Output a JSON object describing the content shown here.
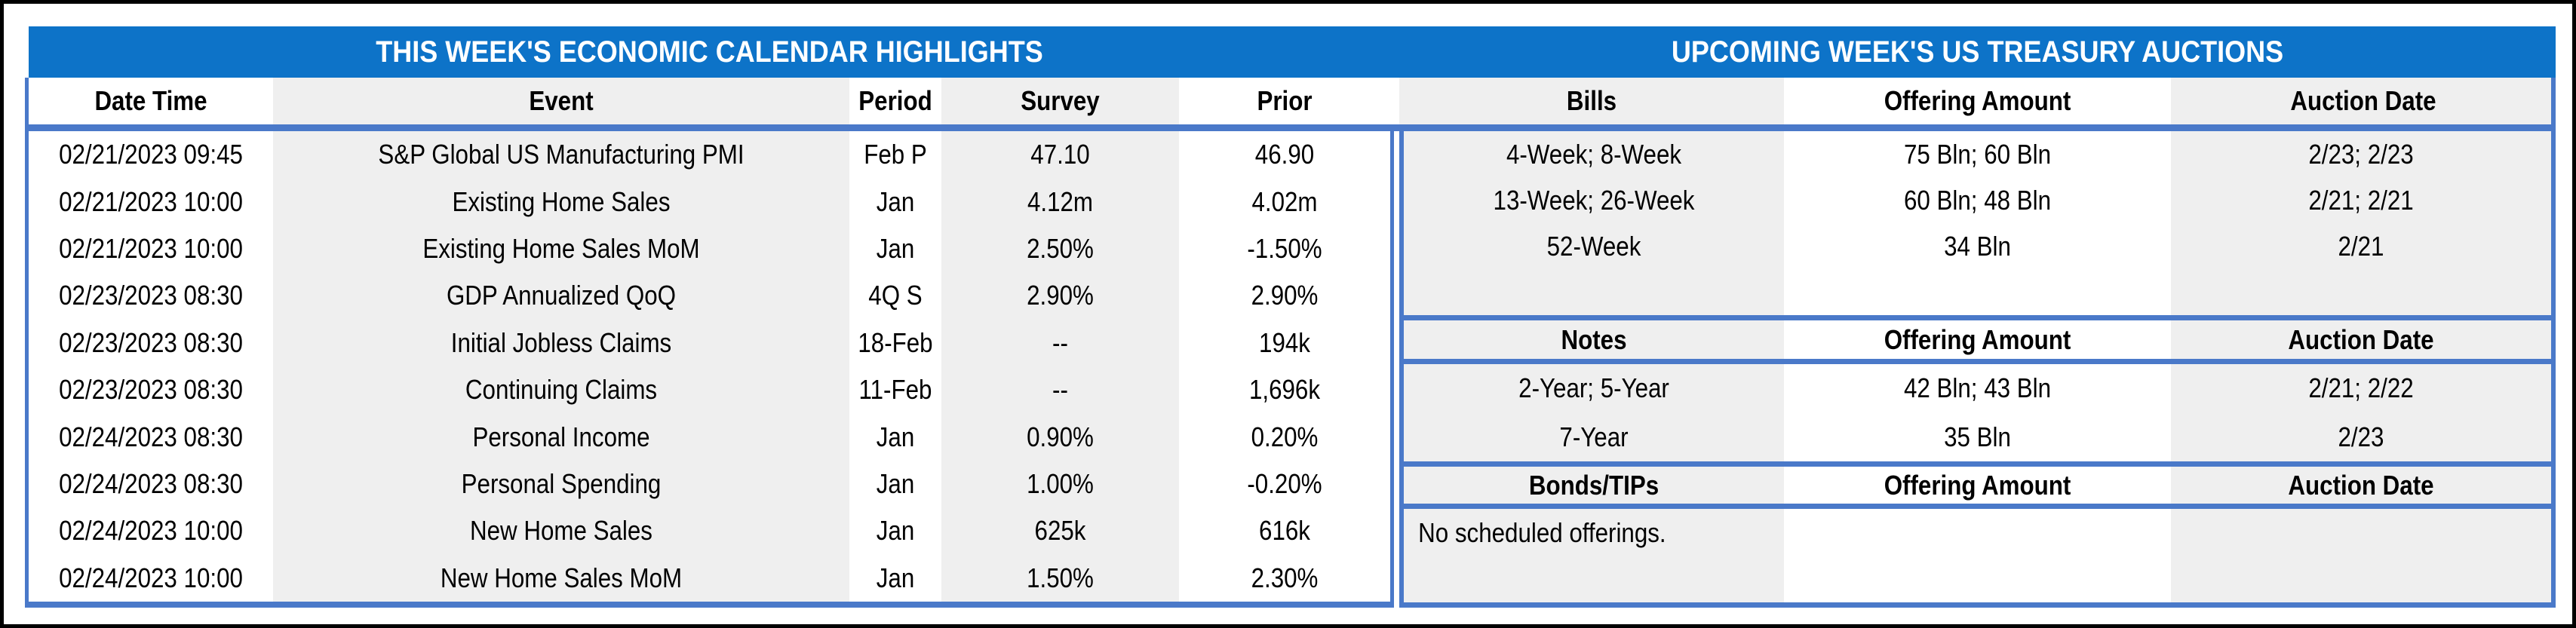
{
  "colors": {
    "title_bar_blue": "#0d73c8",
    "table_border_blue": "#4a79c9",
    "stripe_gray": "#efefef",
    "cell_white": "#ffffff",
    "frame_black": "#000000",
    "text_black": "#000000",
    "title_text_white": "#ffffff"
  },
  "chart_data": [
    {
      "type": "table",
      "title": "THIS WEEK'S ECONOMIC CALENDAR HIGHLIGHTS",
      "columns": [
        "Date Time",
        "Event",
        "Period",
        "Survey",
        "Prior"
      ],
      "rows": [
        [
          "02/21/2023 09:45",
          "S&P Global US Manufacturing PMI",
          "Feb P",
          "47.10",
          "46.90"
        ],
        [
          "02/21/2023 10:00",
          "Existing Home Sales",
          "Jan",
          "4.12m",
          "4.02m"
        ],
        [
          "02/21/2023 10:00",
          "Existing Home Sales MoM",
          "Jan",
          "2.50%",
          "-1.50%"
        ],
        [
          "02/23/2023 08:30",
          "GDP Annualized QoQ",
          "4Q S",
          "2.90%",
          "2.90%"
        ],
        [
          "02/23/2023 08:30",
          "Initial Jobless Claims",
          "18-Feb",
          "--",
          "194k"
        ],
        [
          "02/23/2023 08:30",
          "Continuing Claims",
          "11-Feb",
          "--",
          "1,696k"
        ],
        [
          "02/24/2023 08:30",
          "Personal Income",
          "Jan",
          "0.90%",
          "0.20%"
        ],
        [
          "02/24/2023 08:30",
          "Personal Spending",
          "Jan",
          "1.00%",
          "-0.20%"
        ],
        [
          "02/24/2023 10:00",
          "New Home Sales",
          "Jan",
          "625k",
          "616k"
        ],
        [
          "02/24/2023 10:00",
          "New Home Sales MoM",
          "Jan",
          "1.50%",
          "2.30%"
        ]
      ]
    },
    {
      "type": "table",
      "title": "UPCOMING WEEK'S US TREASURY AUCTIONS",
      "sections": [
        {
          "columns": [
            "Bills",
            "Offering Amount",
            "Auction Date"
          ],
          "rows": [
            [
              "4-Week; 8-Week",
              "75 Bln; 60 Bln",
              "2/23; 2/23"
            ],
            [
              "13-Week; 26-Week",
              "60 Bln; 48 Bln",
              "2/21; 2/21"
            ],
            [
              "52-Week",
              "34 Bln",
              "2/21"
            ]
          ]
        },
        {
          "columns": [
            "Notes",
            "Offering Amount",
            "Auction Date"
          ],
          "rows": [
            [
              "2-Year; 5-Year",
              "42 Bln; 43 Bln",
              "2/21; 2/22"
            ],
            [
              "7-Year",
              "35 Bln",
              "2/23"
            ]
          ]
        },
        {
          "columns": [
            "Bonds/TIPs",
            "Offering Amount",
            "Auction Date"
          ],
          "rows": [
            [
              "No scheduled offerings.",
              "",
              ""
            ]
          ]
        }
      ]
    }
  ]
}
